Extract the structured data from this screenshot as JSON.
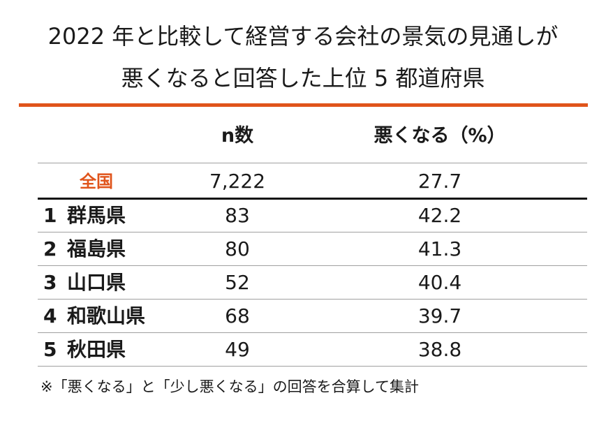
{
  "title": {
    "line1": "2022 年と比較して経営する会社の景気の見通しが",
    "line2": "悪くなると回答した上位 5 都道府県"
  },
  "accent_color": "#e0541b",
  "table": {
    "headers": {
      "n": "n数",
      "pct": "悪くなる（%）"
    },
    "national": {
      "name": "全国",
      "n": "7,222",
      "pct": "27.7"
    },
    "rows": [
      {
        "rank": "1",
        "prefecture": "群馬県",
        "n": "83",
        "pct": "42.2"
      },
      {
        "rank": "2",
        "prefecture": "福島県",
        "n": "80",
        "pct": "41.3"
      },
      {
        "rank": "3",
        "prefecture": "山口県",
        "n": "52",
        "pct": "40.4"
      },
      {
        "rank": "4",
        "prefecture": "和歌山県",
        "n": "68",
        "pct": "39.7"
      },
      {
        "rank": "5",
        "prefecture": "秋田県",
        "n": "49",
        "pct": "38.8"
      }
    ]
  },
  "footnote": "※「悪くなる」と「少し悪くなる」の回答を合算して集計"
}
